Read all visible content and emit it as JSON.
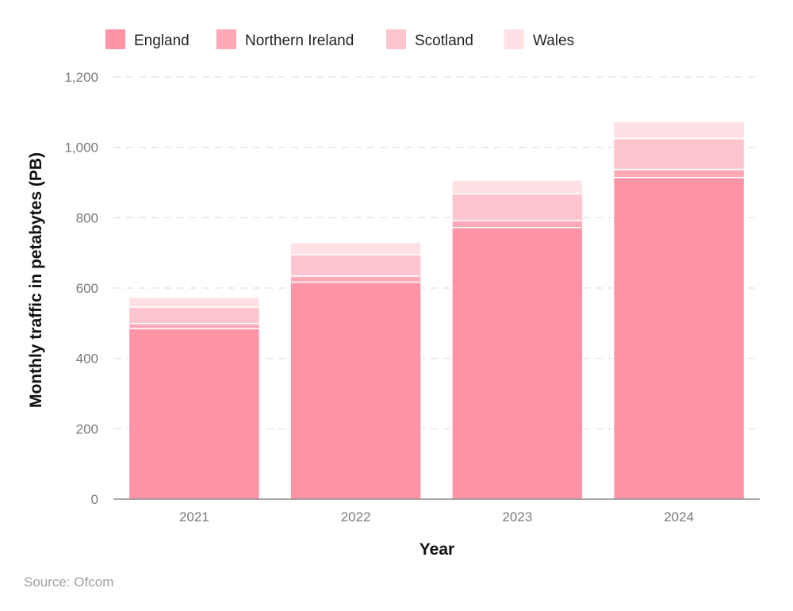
{
  "chart_data": {
    "type": "bar",
    "stacked": true,
    "categories": [
      "2021",
      "2022",
      "2023",
      "2024"
    ],
    "series": [
      {
        "name": "England",
        "values": [
          485,
          617,
          772,
          914
        ],
        "color": "#ff94a6"
      },
      {
        "name": "Northern Ireland",
        "values": [
          14,
          17,
          20,
          23
        ],
        "color": "#ffa8b6"
      },
      {
        "name": "Scotland",
        "values": [
          47,
          61,
          76,
          88
        ],
        "color": "#ffc5cf"
      },
      {
        "name": "Wales",
        "values": [
          28,
          34,
          39,
          48
        ],
        "color": "#ffe0e5"
      }
    ],
    "xlabel": "Year",
    "ylabel": "Monthly traffic in petabytes (PB)",
    "ylim": [
      0,
      1200
    ],
    "yticks": [
      0,
      200,
      400,
      600,
      800,
      1000,
      1200
    ],
    "ytick_labels": [
      "0",
      "200",
      "400",
      "600",
      "800",
      "1,000",
      "1,200"
    ],
    "grid": true,
    "legend_position": "top-left"
  },
  "source": "Source: Ofcom"
}
